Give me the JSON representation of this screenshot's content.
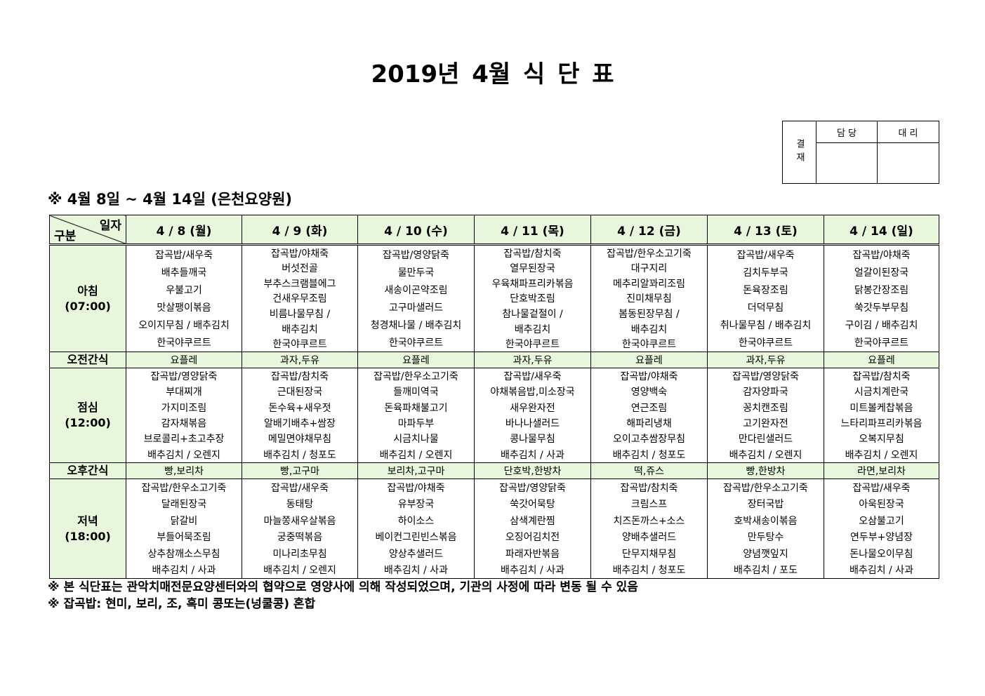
{
  "title": "2019년 4월 식 단 표",
  "approval": {
    "label": "결재",
    "headers": [
      "담 당",
      "대 리"
    ]
  },
  "subtitle": "※ 4월 8일 ~ 4월 14일 (은천요양원)",
  "table": {
    "corner": {
      "top": "일자",
      "bottom": "구분"
    },
    "dates": [
      "4 / 8 (월)",
      "4 / 9 (화)",
      "4 / 10 (수)",
      "4 / 11 (목)",
      "4 / 12 (금)",
      "4 / 13 (토)",
      "4 / 14 (일)"
    ],
    "rows": [
      {
        "label": [
          "아침",
          "(07:00)"
        ],
        "cells": [
          [
            "잡곡밥/새우죽",
            "배추들깨국",
            "우불고기",
            "맛살팽이볶음",
            "오이지무침 / 배추김치",
            "한국야쿠르트"
          ],
          [
            "잡곡밥/야채죽",
            "버섯전골",
            "부추스크램블에그",
            "건새우무조림",
            "비름나물무침 /",
            "배추김치",
            "한국야쿠르트"
          ],
          [
            "잡곡밥/영양닭죽",
            "물만두국",
            "새송이곤약조림",
            "고구마샐러드",
            "청경채나물 / 배추김치",
            "한국야쿠르트"
          ],
          [
            "잡곡밥/참치죽",
            "열무된장국",
            "우육채파프리카볶음",
            "단호박조림",
            "참나물겉절이 /",
            "배추김치",
            "한국야쿠르트"
          ],
          [
            "잡곡밥/한우소고기죽",
            "대구지리",
            "메추리알꽈리조림",
            "진미채무침",
            "봄동된장무침 /",
            "배추김치",
            "한국야쿠르트"
          ],
          [
            "잡곡밥/새우죽",
            "김치두부국",
            "돈육장조림",
            "더덕무침",
            "취나물무침 / 배추김치",
            "한국야쿠르트"
          ],
          [
            "잡곡밥/야채죽",
            "얼갈이된장국",
            "닭봉간장조림",
            "쑥갓두부무침",
            "구이김 / 배추김치",
            "한국야쿠르트"
          ]
        ]
      },
      {
        "label": [
          "오전간식"
        ],
        "cells": [
          [
            "요플레"
          ],
          [
            "과자,두유"
          ],
          [
            "요플레"
          ],
          [
            "과자,두유"
          ],
          [
            "요플레"
          ],
          [
            "과자,두유"
          ],
          [
            "요플레"
          ]
        ]
      },
      {
        "label": [
          "점심",
          "(12:00)"
        ],
        "cells": [
          [
            "잡곡밥/영양닭죽",
            "부대찌개",
            "가지미조림",
            "감자채볶음",
            "브로콜리+초고추장",
            "배추김치 / 오렌지"
          ],
          [
            "잡곡밥/참치죽",
            "근대된장국",
            "돈수육+새우젓",
            "알배기배추+쌈장",
            "메밀면야채무침",
            "배추김치 / 청포도"
          ],
          [
            "잡곡밥/한우소고기죽",
            "들깨미역국",
            "돈육파채불고기",
            "마파두부",
            "시금치나물",
            "배추김치 / 오렌지"
          ],
          [
            "잡곡밥/새우죽",
            "야채볶음밥,미소장국",
            "새우완자전",
            "바나나샐러드",
            "콩나물무침",
            "배추김치 / 사과"
          ],
          [
            "잡곡밥/야채죽",
            "영양백숙",
            "연근조림",
            "해파리냉채",
            "오이고추쌈장무침",
            "배추김치 / 청포도"
          ],
          [
            "잡곡밥/영양닭죽",
            "감자양파국",
            "꽁치캔조림",
            "고기완자전",
            "만다린샐러드",
            "배추김치 / 오렌지"
          ],
          [
            "잡곡밥/참치죽",
            "시금치계란국",
            "미트볼케찹볶음",
            "느타리파프리카볶음",
            "오복지무침",
            "배추김치 / 오렌지"
          ]
        ]
      },
      {
        "label": [
          "오후간식"
        ],
        "cells": [
          [
            "빵,보리차"
          ],
          [
            "빵,고구마"
          ],
          [
            "보리차,고구마"
          ],
          [
            "단호박,한방차"
          ],
          [
            "떡,쥬스"
          ],
          [
            "빵,한방차"
          ],
          [
            "라면,보리차"
          ]
        ]
      },
      {
        "label": [
          "저녁",
          "(18:00)"
        ],
        "cells": [
          [
            "잡곡밥/한우소고기죽",
            "달래된장국",
            "닭갈비",
            "부들어묵조림",
            "상추참깨소스무침",
            "배추김치 / 사과"
          ],
          [
            "잡곡밥/새우죽",
            "동태탕",
            "마늘쫑새우살볶음",
            "궁중떡볶음",
            "미나리초무침",
            "배추김치 / 오렌지"
          ],
          [
            "잡곡밥/야채죽",
            "유부장국",
            "하이소스",
            "베이컨그린빈스볶음",
            "양상추샐러드",
            "배추김치 / 사과"
          ],
          [
            "잡곡밥/영양닭죽",
            "쑥갓어묵탕",
            "삼색계란찜",
            "오징어김치전",
            "파래자반볶음",
            "배추김치 / 사과"
          ],
          [
            "잡곡밥/참치죽",
            "크림스프",
            "치즈돈까스+소스",
            "양배추샐러드",
            "단무지채무침",
            "배추김치 / 청포도"
          ],
          [
            "잡곡밥/한우소고기죽",
            "장터국밥",
            "호박새송이볶음",
            "만두탕수",
            "양념깻잎지",
            "배추김치 / 포도"
          ],
          [
            "잡곡밥/새우죽",
            "아욱된장국",
            "오삼불고기",
            "연두부+양념장",
            "돈나물오이무침",
            "배추김치 / 사과"
          ]
        ]
      }
    ]
  },
  "notes": [
    "※ 본 식단표는 관악치매전문요양센터와의 협약으로 영양사에 의해 작성되었으며, 기관의 사정에 따라 변동 될 수 있음",
    "※ 잡곡밥: 현미, 보리, 조, 흑미 콩또는(넝쿨콩) 혼합"
  ]
}
